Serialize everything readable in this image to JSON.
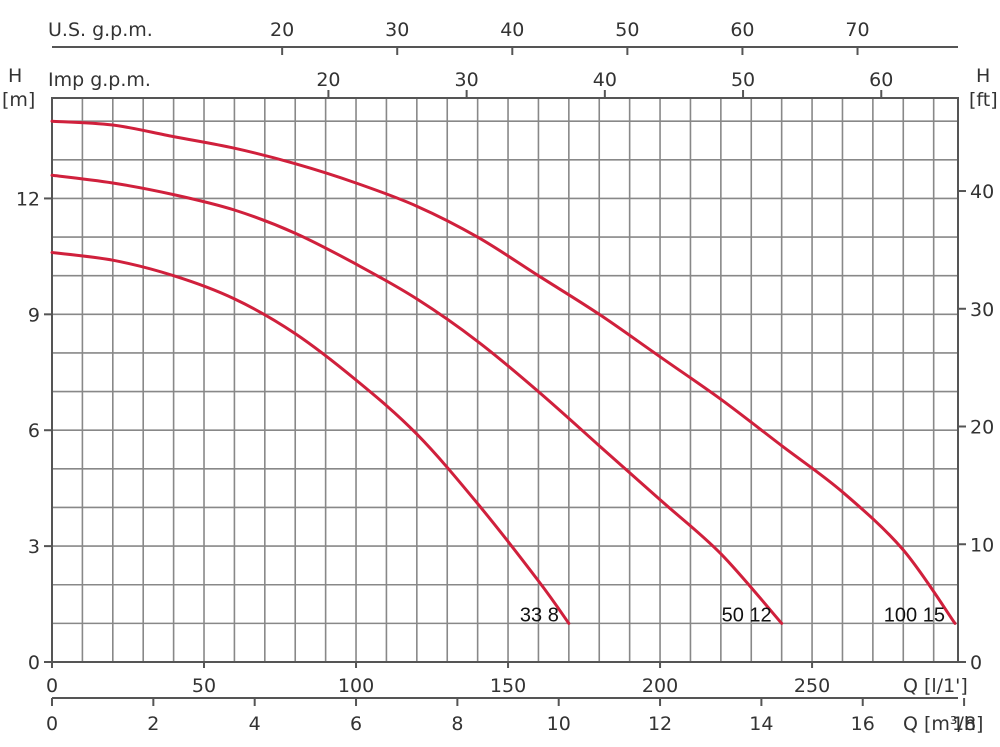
{
  "chart_data": {
    "type": "line",
    "x": [
      0,
      20,
      40,
      60,
      80,
      100,
      120,
      140,
      160,
      180,
      200,
      220,
      240,
      260,
      280,
      297
    ],
    "series": [
      {
        "name": "33 8",
        "x": [
          0,
          20,
          40,
          60,
          80,
          100,
          120,
          140,
          160,
          170
        ],
        "values": [
          10.6,
          10.4,
          10.0,
          9.4,
          8.5,
          7.3,
          5.9,
          4.1,
          2.1,
          1.0
        ]
      },
      {
        "name": "50 12",
        "x": [
          0,
          20,
          40,
          60,
          80,
          100,
          120,
          140,
          160,
          180,
          200,
          220,
          240
        ],
        "values": [
          12.6,
          12.4,
          12.1,
          11.7,
          11.1,
          10.3,
          9.4,
          8.3,
          7.0,
          5.6,
          4.2,
          2.8,
          1.0
        ]
      },
      {
        "name": "100 15",
        "x": [
          0,
          20,
          40,
          60,
          80,
          100,
          120,
          140,
          160,
          180,
          200,
          220,
          240,
          260,
          280,
          297
        ],
        "values": [
          14.0,
          13.9,
          13.6,
          13.3,
          12.9,
          12.4,
          11.8,
          11.0,
          10.0,
          9.0,
          7.9,
          6.8,
          5.6,
          4.4,
          2.9,
          1.0
        ]
      }
    ],
    "axes": {
      "left": {
        "label": "H",
        "unit": "[m]",
        "ticks": [
          "0",
          "3",
          "6",
          "9",
          "12"
        ],
        "tick_values": [
          0,
          3,
          6,
          9,
          12
        ],
        "range": [
          0,
          14.6
        ]
      },
      "right": {
        "label": "H",
        "unit": "[ft]",
        "ticks": [
          "0",
          "10",
          "20",
          "30",
          "40"
        ],
        "tick_values": [
          0,
          10,
          20,
          30,
          40
        ]
      },
      "bottom_primary": {
        "label": "Q [l/1']",
        "ticks": [
          "0",
          "50",
          "100",
          "150",
          "200",
          "250"
        ],
        "tick_values": [
          0,
          50,
          100,
          150,
          200,
          250
        ],
        "range": [
          0,
          298
        ]
      },
      "bottom_secondary": {
        "label": "Q [m³/h]",
        "ticks": [
          "0",
          "2",
          "4",
          "6",
          "8",
          "10",
          "12",
          "14",
          "16",
          "18"
        ],
        "tick_values": [
          0,
          2,
          4,
          6,
          8,
          10,
          12,
          14,
          16,
          18
        ]
      },
      "top_us": {
        "label": "U.S. g.p.m.",
        "ticks": [
          "20",
          "30",
          "40",
          "50",
          "60",
          "70"
        ],
        "tick_values": [
          20,
          30,
          40,
          50,
          60,
          70
        ]
      },
      "top_imp": {
        "label": "Imp g.p.m.",
        "ticks": [
          "20",
          "30",
          "40",
          "50",
          "60"
        ],
        "tick_values": [
          20,
          30,
          40,
          50,
          60
        ]
      }
    },
    "grid": true,
    "curve_color": "#d0203c",
    "grid_color": "#888888"
  }
}
